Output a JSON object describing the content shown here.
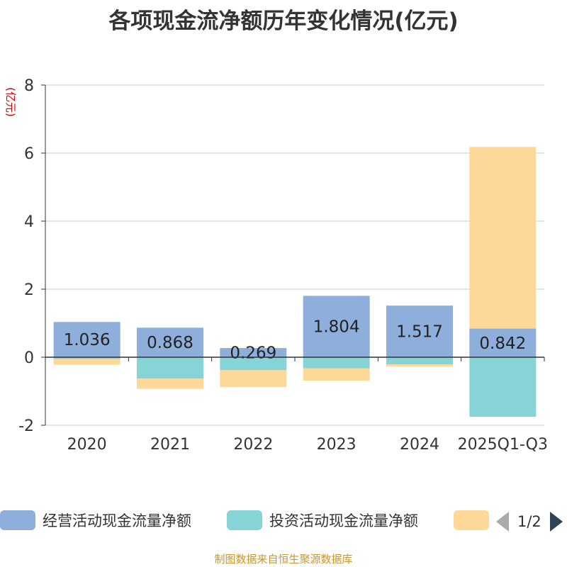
{
  "title": "各项现金流净额历年变化情况(亿元)",
  "chart_data": {
    "type": "bar",
    "stacked": true,
    "title": "各项现金流净额历年变化情况(亿元)",
    "ylabel": "(亿元)",
    "ylim": [
      -2,
      8
    ],
    "yticks": [
      -2,
      0,
      2,
      4,
      6,
      8
    ],
    "grid": true,
    "legend_position": "bottom",
    "categories": [
      "2020",
      "2021",
      "2022",
      "2023",
      "2024",
      "2025Q1-Q3"
    ],
    "series": [
      {
        "name": "经营活动现金流量净额",
        "color": "#8eaedb",
        "values": [
          1.036,
          0.868,
          0.269,
          1.804,
          1.517,
          0.842
        ],
        "labels": [
          "1.036",
          "0.868",
          "0.269",
          "1.804",
          "1.517",
          "0.842"
        ]
      },
      {
        "name": "投资活动现金流量净额",
        "color": "#86d4d6",
        "values": [
          -0.05,
          -0.63,
          -0.38,
          -0.33,
          -0.21,
          -1.75
        ]
      },
      {
        "name": "",
        "color": "#fdd898",
        "values": [
          -0.17,
          -0.3,
          -0.5,
          -0.36,
          -0.06,
          5.34
        ]
      }
    ]
  },
  "legend": {
    "items": [
      {
        "label": "经营活动现金流量净额",
        "color": "#8eaedb"
      },
      {
        "label": "投资活动现金流量净额",
        "color": "#86d4d6"
      },
      {
        "label": "",
        "color": "#fdd898"
      }
    ],
    "page": "1/2"
  },
  "source": "制图数据来自恒生聚源数据库"
}
